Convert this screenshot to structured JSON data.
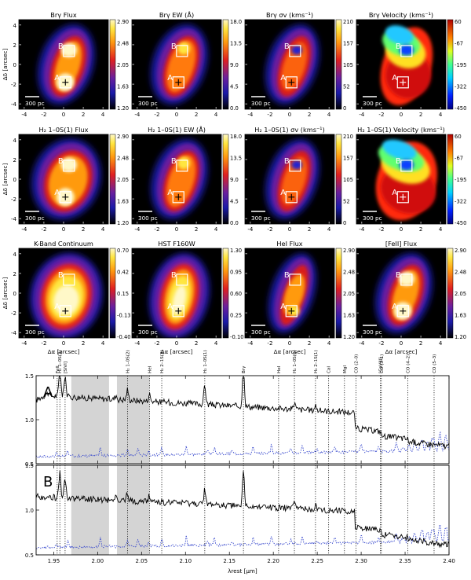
{
  "figure": {
    "panels": [
      {
        "title": "Brγ Flux",
        "cbar": [
          "2.90",
          "2.48",
          "2.05",
          "1.63",
          "1.20"
        ],
        "cmap": "heat",
        "style": "flux_bright"
      },
      {
        "title": "Brγ EW (Å)",
        "cbar": [
          "18.0",
          "13.5",
          "9.0",
          "4.5",
          "0.0"
        ],
        "cmap": "heat",
        "style": "ew"
      },
      {
        "title": "Brγ σv (kms⁻¹)",
        "cbar": [
          "210",
          "157",
          "105",
          "52",
          "0"
        ],
        "cmap": "heat",
        "style": "sigma"
      },
      {
        "title": "Brγ Velocity (kms⁻¹)",
        "cbar": [
          "60",
          "-67",
          "-195",
          "-322",
          "-450"
        ],
        "cmap": "jet",
        "style": "velocity"
      },
      {
        "title": "H₂ 1–0S(1) Flux",
        "cbar": [
          "2.90",
          "2.48",
          "2.05",
          "1.63",
          "1.20"
        ],
        "cmap": "heat",
        "style": "flux_halo"
      },
      {
        "title": "H₂ 1–0S(1) EW (Å)",
        "cbar": [
          "18.0",
          "13.5",
          "9.0",
          "4.5",
          "0.0"
        ],
        "cmap": "heat",
        "style": "ew2"
      },
      {
        "title": "H₂ 1–0S(1) σv (kms⁻¹)",
        "cbar": [
          "210",
          "157",
          "105",
          "52",
          "0"
        ],
        "cmap": "heat",
        "style": "sigma2"
      },
      {
        "title": "H₂ 1–0S(1) Velocity (kms⁻¹)",
        "cbar": [
          "60",
          "-67",
          "-195",
          "-322",
          "-450"
        ],
        "cmap": "jet",
        "style": "velocity2"
      },
      {
        "title": "K-Band Continuum",
        "cbar": [
          "0.70",
          "0.42",
          "0.15",
          "-0.13",
          "-0.40"
        ],
        "cmap": "heat",
        "style": "cont"
      },
      {
        "title": "HST F160W",
        "cbar": [
          "1.30",
          "0.95",
          "0.60",
          "0.25",
          "-0.10"
        ],
        "cmap": "heat",
        "style": "hst"
      },
      {
        "title": "HeI Flux",
        "cbar": [
          "2.90",
          "2.48",
          "2.05",
          "1.63",
          "1.20"
        ],
        "cmap": "heat",
        "style": "hei"
      },
      {
        "title": "[FeII] Flux",
        "cbar": [
          "2.90",
          "2.48",
          "2.05",
          "1.63",
          "1.20"
        ],
        "cmap": "heat",
        "style": "feii"
      }
    ],
    "map_y_ticks": [
      "4",
      "2",
      "0",
      "-2",
      "-4"
    ],
    "map_x_ticks": [
      "-4",
      "-2",
      "0",
      "2",
      "4"
    ],
    "map_ylabel": "Δδ [arcsec]",
    "map_xlabel": "Δα [arcsec]",
    "scalebar": "300 pc",
    "region_a": "A",
    "region_b": "B"
  },
  "chart_data": [
    {
      "type": "line",
      "panel": "A",
      "x_range": [
        1.93,
        2.4
      ],
      "ylim": [
        0.5,
        1.5
      ],
      "yticks": [
        "1.5",
        "1.0",
        "0.5"
      ],
      "line_labels": [
        "FeII",
        "H₂ 1–0S(3)",
        "[SiVI]",
        "H₂ 1–0S(2)",
        "HeI",
        "H₂ 2–1S(3)",
        "H₂ 1–0S(1)",
        "Brγ",
        "HeI",
        "H₂ 1–0S(0)",
        "H₂ 2–1S(1)",
        "CaI",
        "MgI",
        "CO (2–0)",
        "[CaVIII]",
        "CO (3–1)",
        "CO (4–2)",
        "CO (5–3)"
      ],
      "line_positions": [
        1.954,
        1.957,
        1.963,
        2.034,
        2.059,
        2.073,
        2.122,
        2.166,
        2.206,
        2.224,
        2.248,
        2.263,
        2.281,
        2.294,
        2.322,
        2.323,
        2.353,
        2.383
      ],
      "shaded": [
        [
          1.97,
          2.013
        ],
        [
          2.022,
          2.059
        ]
      ]
    },
    {
      "type": "line",
      "panel": "B",
      "x_range": [
        1.93,
        2.4
      ],
      "ylim": [
        0.5,
        1.5
      ],
      "yticks": [
        "1.5",
        "1.0",
        "0.5"
      ],
      "xticks": [
        "1.95",
        "2.00",
        "2.05",
        "2.10",
        "2.15",
        "2.20",
        "2.25",
        "2.30",
        "2.35",
        "2.40"
      ],
      "xlabel": "λrest [µm]",
      "shaded": [
        [
          1.97,
          2.013
        ],
        [
          2.022,
          2.059
        ]
      ]
    }
  ]
}
